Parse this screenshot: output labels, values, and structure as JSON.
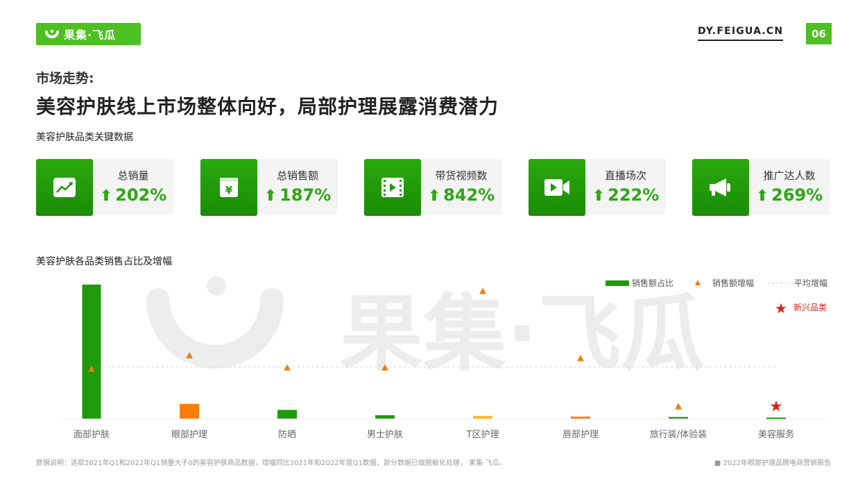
{
  "header": {
    "logo_text": "果集·飞瓜",
    "site": "DY.FEIGUA.CN",
    "page_number": "06"
  },
  "kicker": "市场走势:",
  "title": "美容护肤线上市场整体向好，局部护理展露消费潜力",
  "kpi_section_title": "美容护肤品类关键数据",
  "kpis": [
    {
      "label": "总销量",
      "value": "202%",
      "icon": "trend-chart-icon"
    },
    {
      "label": "总销售额",
      "value": "187%",
      "icon": "yuan-money-icon"
    },
    {
      "label": "带货视频数",
      "value": "842%",
      "icon": "film-icon"
    },
    {
      "label": "直播场次",
      "value": "222%",
      "icon": "video-camera-icon"
    },
    {
      "label": "推广达人数",
      "value": "269%",
      "icon": "megaphone-icon"
    }
  ],
  "arrow_glyph": "⬆",
  "chart_section_title": "美容护肤各品类销售占比及增幅",
  "watermark": "果集·飞瓜",
  "chart_data": {
    "type": "bar",
    "categories": [
      "面部护肤",
      "眼部护理",
      "防晒",
      "男士护肤",
      "T区护理",
      "唇部护理",
      "旅行装/体验装",
      "美容服务"
    ],
    "series": [
      {
        "name": "销售额占比",
        "values": [
          100,
          11,
          6.5,
          2.5,
          2,
          1.5,
          1.2,
          0.8
        ],
        "colors": [
          "#1f9a0c",
          "#ff7c0a",
          "#1f9a0c",
          "#1f9a0c",
          "#ffb52b",
          "#ff7c0a",
          "#1f9a0c",
          "#1f9a0c"
        ]
      },
      {
        "name": "销售额增幅",
        "values": [
          37,
          47,
          38,
          38,
          95,
          45,
          9,
          9
        ],
        "markers": [
          "triangle",
          "triangle",
          "triangle",
          "triangle",
          "triangle",
          "triangle",
          "triangle",
          "star"
        ]
      }
    ],
    "average_growth": 38.5,
    "ylim": [
      0,
      100
    ],
    "legend": {
      "share": "销售额占比",
      "growth": "销售额增幅",
      "average": "平均增幅",
      "emerging": "新兴品类",
      "position": "top-right"
    },
    "colors": {
      "green": "#1f9a0c",
      "orange": "#ff7c0a",
      "light_orange": "#ffb52b",
      "triangle": "#f07d12",
      "star": "#e0201a",
      "avg_line": "#d8d8d8"
    }
  },
  "footer": {
    "note": "数据说明：选取2021年Q1和2022年Q1销量大于0的美容护肤商品数据，增幅同比2021年和2022年度Q1数据，部分数据已做脱敏化处理， 果集·飞瓜。",
    "report": "■ 2022年眼部护理品牌电商营销报告"
  }
}
